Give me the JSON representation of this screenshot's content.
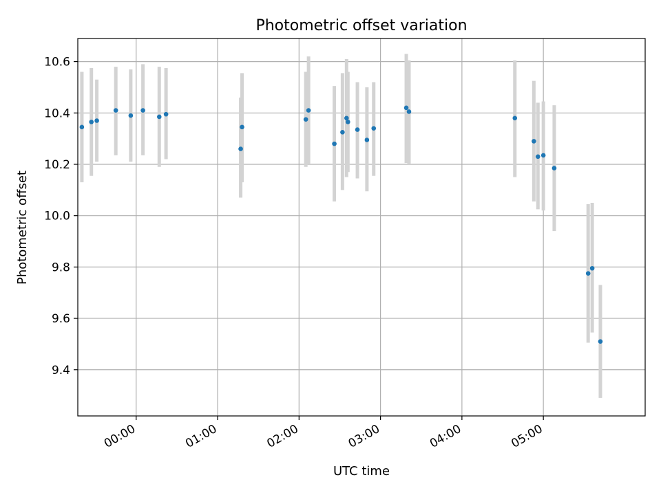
{
  "chart_data": {
    "type": "scatter",
    "title": "Photometric offset variation",
    "xlabel": "UTC time",
    "ylabel": "Photometric offset",
    "x_ticks": [
      "00:00",
      "01:00",
      "02:00",
      "03:00",
      "04:00",
      "05:00"
    ],
    "y_ticks": [
      "9.4",
      "9.6",
      "9.8",
      "10.0",
      "10.2",
      "10.4",
      "10.6"
    ],
    "xlim": [
      "23:17",
      "06:15"
    ],
    "ylim": [
      9.22,
      10.69
    ],
    "grid": true,
    "point_color": "#1f77b4",
    "errorbar_color": "#d3d3d3",
    "series": [
      {
        "points": [
          {
            "t": "23:20",
            "y": 10.345,
            "lo": 10.13,
            "hi": 10.56
          },
          {
            "t": "23:27",
            "y": 10.365,
            "lo": 10.155,
            "hi": 10.575
          },
          {
            "t": "23:31",
            "y": 10.37,
            "lo": 10.21,
            "hi": 10.53
          },
          {
            "t": "23:45",
            "y": 10.41,
            "lo": 10.235,
            "hi": 10.58
          },
          {
            "t": "23:56",
            "y": 10.39,
            "lo": 10.21,
            "hi": 10.57
          },
          {
            "t": "00:05",
            "y": 10.41,
            "lo": 10.235,
            "hi": 10.59
          },
          {
            "t": "00:17",
            "y": 10.385,
            "lo": 10.19,
            "hi": 10.58
          },
          {
            "t": "00:22",
            "y": 10.395,
            "lo": 10.22,
            "hi": 10.575
          },
          {
            "t": "01:17",
            "y": 10.26,
            "lo": 10.07,
            "hi": 10.46
          },
          {
            "t": "01:18",
            "y": 10.345,
            "lo": 10.13,
            "hi": 10.555
          },
          {
            "t": "02:05",
            "y": 10.375,
            "lo": 10.19,
            "hi": 10.56
          },
          {
            "t": "02:07",
            "y": 10.41,
            "lo": 10.2,
            "hi": 10.62
          },
          {
            "t": "02:26",
            "y": 10.28,
            "lo": 10.055,
            "hi": 10.505
          },
          {
            "t": "02:32",
            "y": 10.325,
            "lo": 10.1,
            "hi": 10.555
          },
          {
            "t": "02:35",
            "y": 10.38,
            "lo": 10.15,
            "hi": 10.61
          },
          {
            "t": "02:36",
            "y": 10.365,
            "lo": 10.17,
            "hi": 10.56
          },
          {
            "t": "02:43",
            "y": 10.335,
            "lo": 10.145,
            "hi": 10.52
          },
          {
            "t": "02:50",
            "y": 10.295,
            "lo": 10.095,
            "hi": 10.5
          },
          {
            "t": "02:55",
            "y": 10.34,
            "lo": 10.155,
            "hi": 10.52
          },
          {
            "t": "03:19",
            "y": 10.42,
            "lo": 10.205,
            "hi": 10.63
          },
          {
            "t": "03:21",
            "y": 10.405,
            "lo": 10.2,
            "hi": 10.605
          },
          {
            "t": "04:39",
            "y": 10.38,
            "lo": 10.15,
            "hi": 10.605
          },
          {
            "t": "04:53",
            "y": 10.29,
            "lo": 10.055,
            "hi": 10.525
          },
          {
            "t": "04:56",
            "y": 10.23,
            "lo": 10.025,
            "hi": 10.44
          },
          {
            "t": "05:00",
            "y": 10.235,
            "lo": 10.02,
            "hi": 10.445
          },
          {
            "t": "05:08",
            "y": 10.185,
            "lo": 9.94,
            "hi": 10.43
          },
          {
            "t": "05:33",
            "y": 9.775,
            "lo": 9.505,
            "hi": 10.045
          },
          {
            "t": "05:36",
            "y": 9.795,
            "lo": 9.545,
            "hi": 10.05
          },
          {
            "t": "05:42",
            "y": 9.51,
            "lo": 9.29,
            "hi": 9.73
          }
        ]
      }
    ]
  }
}
